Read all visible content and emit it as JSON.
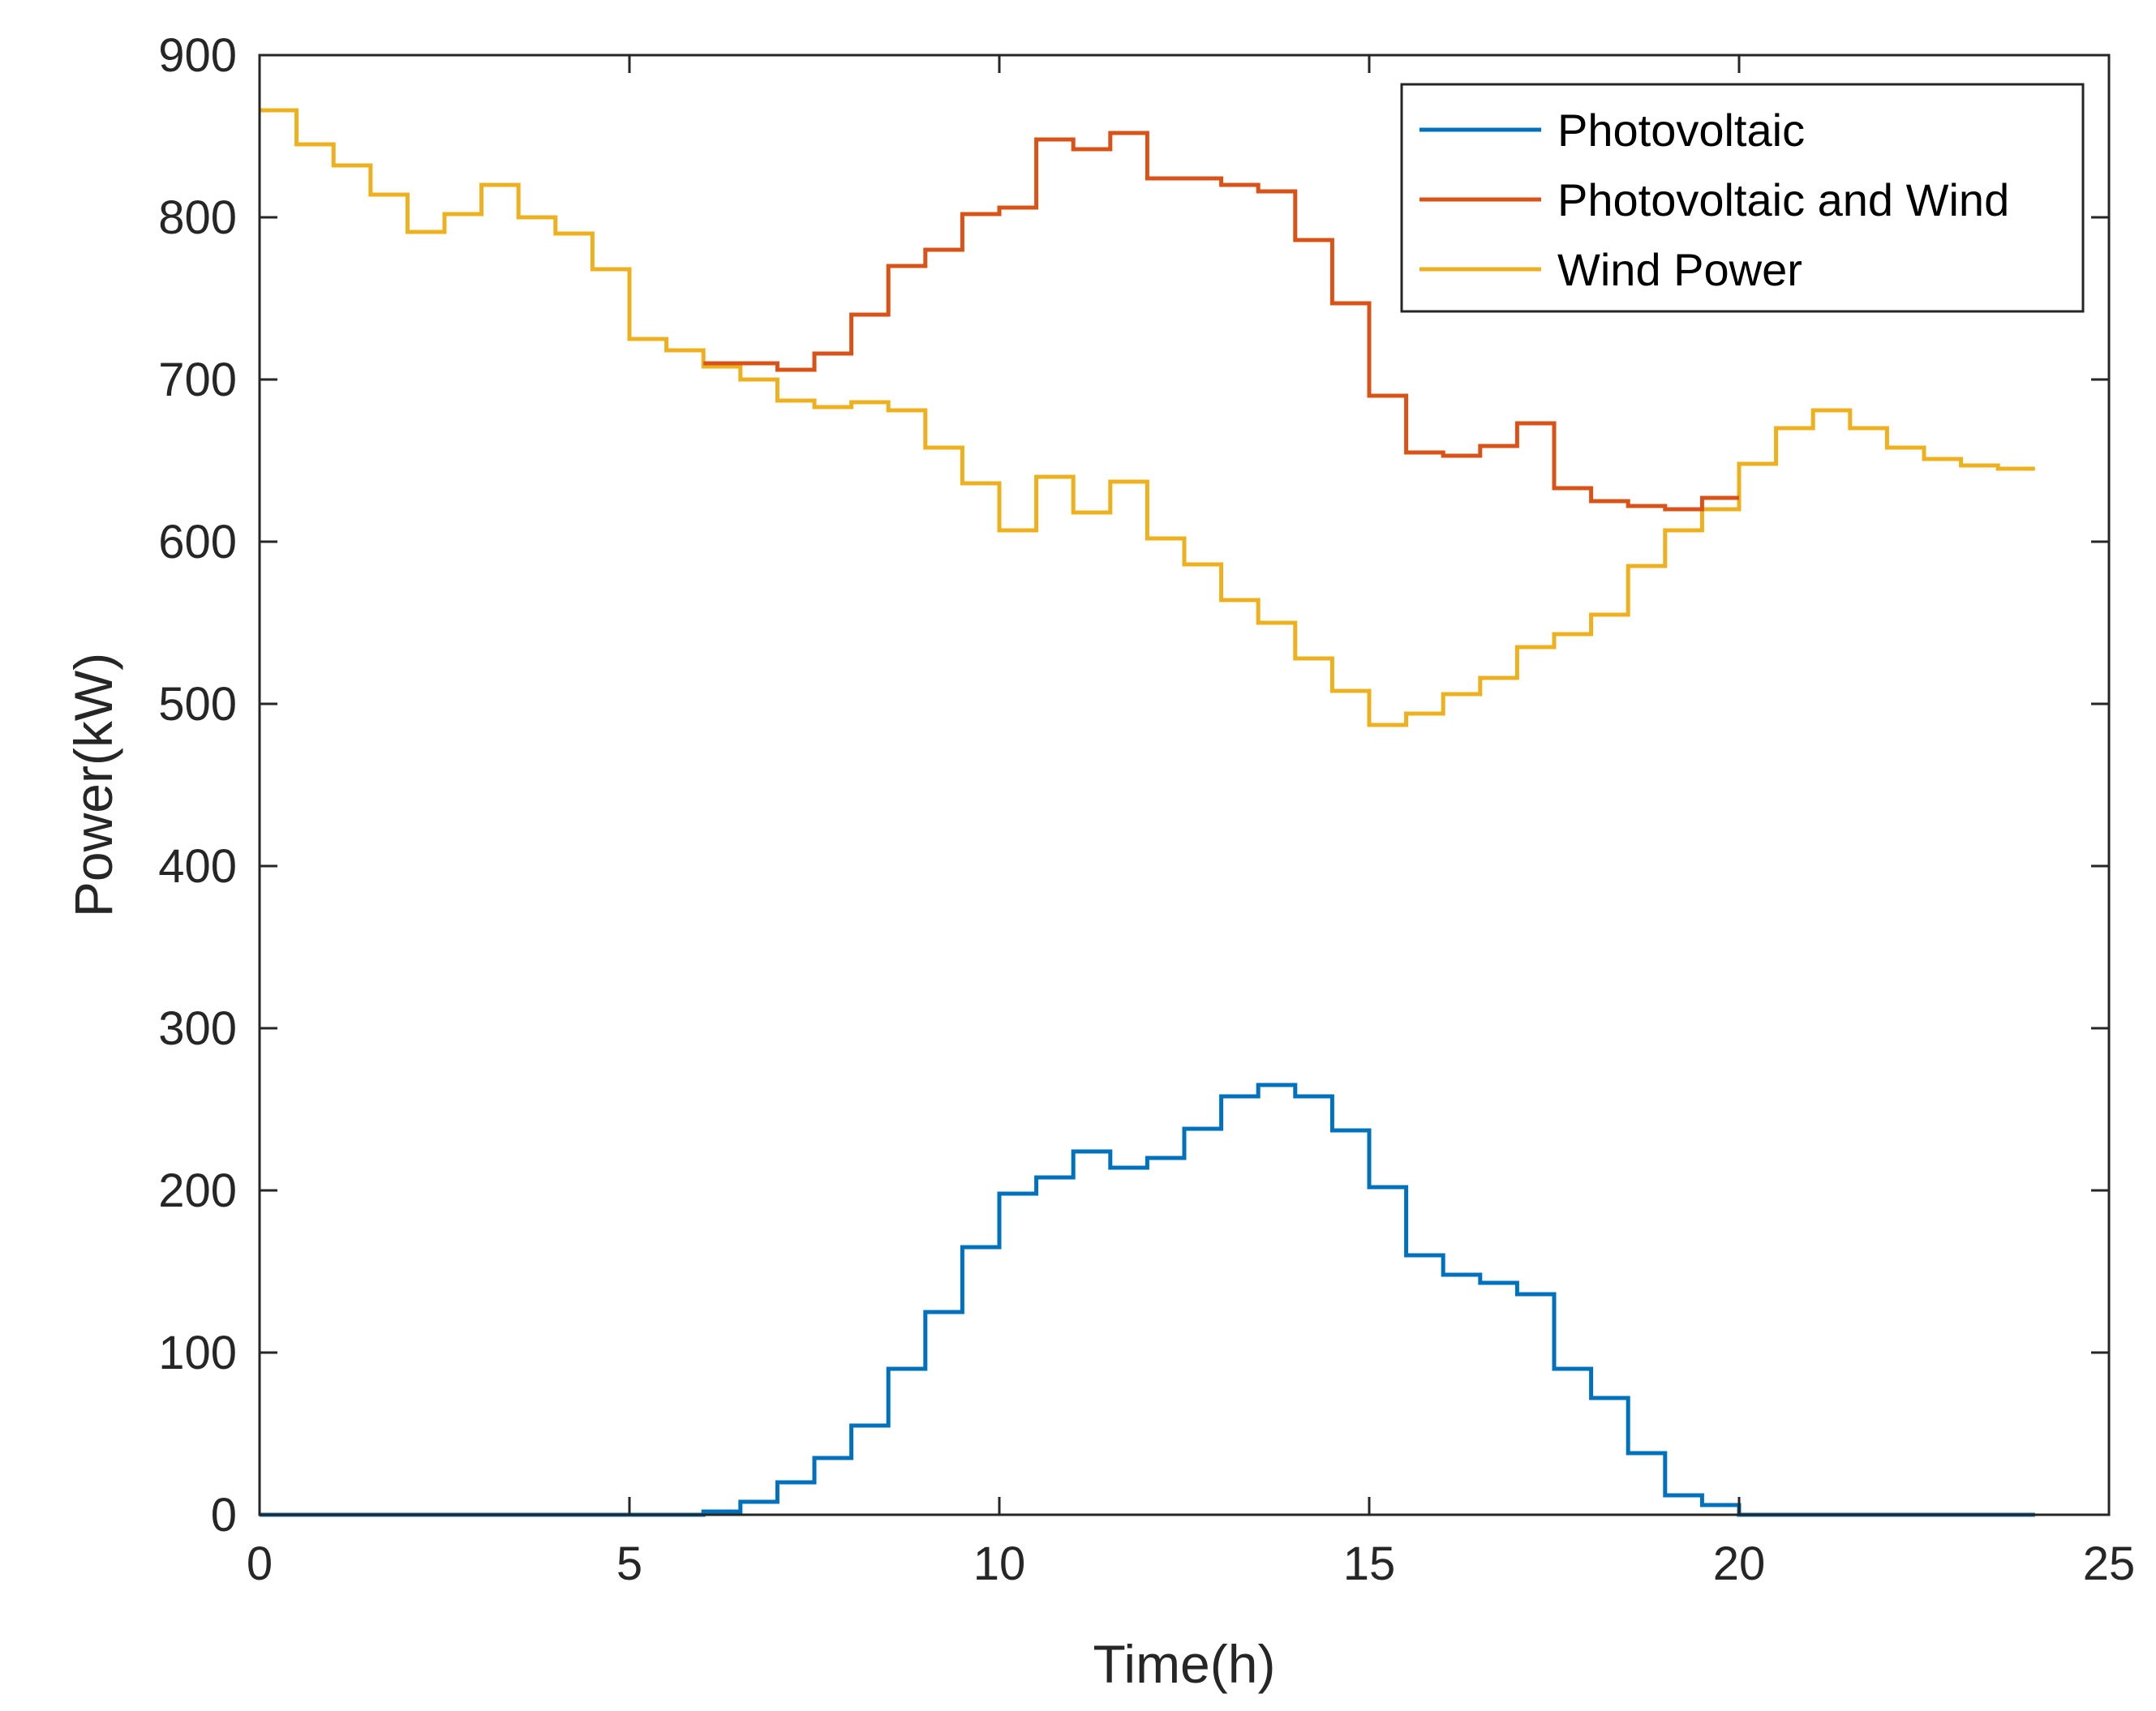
{
  "chart_data": {
    "type": "line",
    "title": "",
    "xlabel": "Time(h)",
    "ylabel": "Power(kW)",
    "xlim": [
      0,
      25
    ],
    "ylim": [
      0,
      900
    ],
    "xticks": [
      0,
      5,
      10,
      15,
      20,
      25
    ],
    "yticks": [
      0,
      100,
      200,
      300,
      400,
      500,
      600,
      700,
      800,
      900
    ],
    "grid": false,
    "legend_position": "top-right",
    "step": 0.5,
    "x_start": 0,
    "series": [
      {
        "name": "Photovoltaic",
        "color": "#0072BD",
        "values": [
          0,
          0,
          0,
          0,
          0,
          0,
          0,
          0,
          0,
          0,
          0,
          0,
          2,
          8,
          20,
          35,
          55,
          90,
          125,
          165,
          198,
          208,
          224,
          214,
          220,
          238,
          258,
          265,
          258,
          237,
          202,
          160,
          148,
          143,
          136,
          90,
          72,
          38,
          12,
          6,
          0,
          0,
          0,
          0,
          0,
          0,
          0,
          0
        ]
      },
      {
        "name": "Photovoltaic and Wind",
        "color": "#D95319",
        "values": [
          null,
          null,
          null,
          null,
          null,
          null,
          null,
          null,
          null,
          null,
          null,
          null,
          710,
          710,
          706,
          716,
          740,
          770,
          780,
          802,
          806,
          848,
          842,
          852,
          824,
          824,
          820,
          816,
          786,
          747,
          690,
          655,
          653,
          659,
          673,
          633,
          625,
          622,
          620,
          627,
          null,
          null,
          null,
          null,
          null,
          null,
          null,
          null
        ]
      },
      {
        "name": "Wind Power",
        "color": "#EDB120",
        "values": [
          866,
          845,
          832,
          814,
          791,
          802,
          820,
          800,
          790,
          768,
          725,
          718,
          708,
          700,
          687,
          683,
          686,
          681,
          658,
          636,
          607,
          640,
          618,
          637,
          602,
          586,
          564,
          550,
          528,
          508,
          487,
          494,
          506,
          516,
          535,
          543,
          555,
          585,
          607,
          620,
          648,
          670,
          681,
          670,
          658,
          651,
          647,
          645
        ]
      }
    ]
  }
}
